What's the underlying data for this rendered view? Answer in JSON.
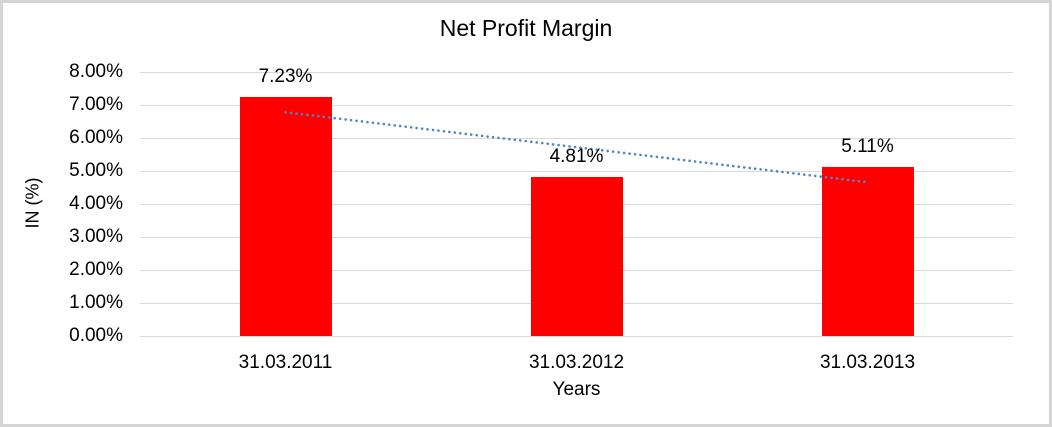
{
  "frame": {
    "background": "#ffffff",
    "border_color": "#d5d5d5"
  },
  "chart_data": {
    "type": "bar",
    "title": "Net Profit Margin",
    "xlabel": "Years",
    "ylabel": "IN (%)",
    "categories": [
      "31.03.2011",
      "31.03.2012",
      "31.03.2013"
    ],
    "values": [
      7.23,
      4.81,
      5.11
    ],
    "data_labels": [
      "7.23%",
      "4.81%",
      "5.11%"
    ],
    "y_ticks": [
      "0.00%",
      "1.00%",
      "2.00%",
      "3.00%",
      "4.00%",
      "5.00%",
      "6.00%",
      "7.00%",
      "8.00%"
    ],
    "ylim": [
      0,
      8
    ],
    "grid": true,
    "legend": "none",
    "bar_color": "#ff0000",
    "gridline_color": "#d9d9d9",
    "text_color": "#000000",
    "trendline": {
      "type": "linear",
      "style": "dotted",
      "color": "#4e86c6",
      "start_value": 6.78,
      "end_value": 4.66
    }
  }
}
